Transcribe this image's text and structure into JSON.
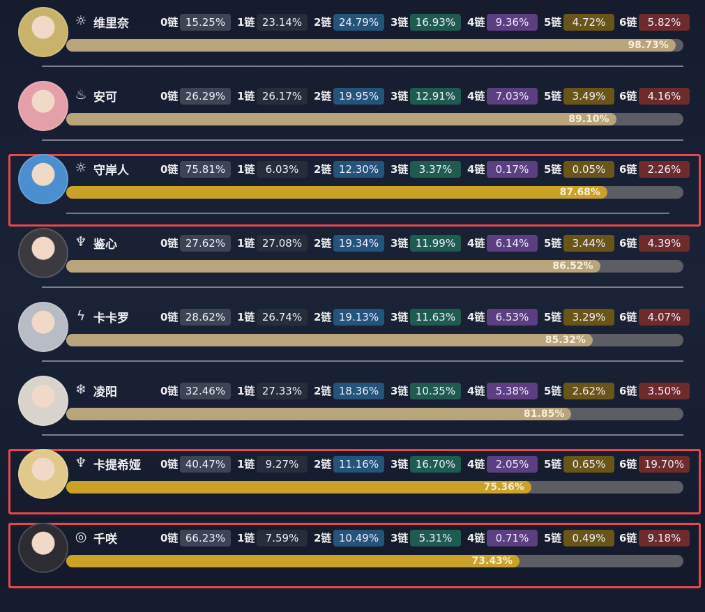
{
  "chain_labels": [
    "0链",
    "1链",
    "2链",
    "3链",
    "4链",
    "5链",
    "6链"
  ],
  "badge_colors": [
    "#3d4453",
    "#262d3b",
    "#24547a",
    "#1f5c4f",
    "#5c3f80",
    "#6a5518",
    "#6e2b2c"
  ],
  "bar_colors": {
    "normal": "#b8a57c",
    "highlighted": "#c9a227",
    "track": "#5c5e64",
    "highlight_border": "#e8484c"
  },
  "characters": [
    {
      "name": "维里奈",
      "element_icon": "spectro-icon",
      "icon": "☼",
      "avatar_color": "#c9b36a",
      "chains": [
        "15.25%",
        "23.14%",
        "24.79%",
        "16.93%",
        "9.36%",
        "4.72%",
        "5.82%"
      ],
      "ownership": "98.73%",
      "ownership_value": 98.73,
      "highlighted": false
    },
    {
      "name": "安可",
      "element_icon": "fusion-icon",
      "icon": "♨",
      "avatar_color": "#e3a0a8",
      "chains": [
        "26.29%",
        "26.17%",
        "19.95%",
        "12.91%",
        "7.03%",
        "3.49%",
        "4.16%"
      ],
      "ownership": "89.10%",
      "ownership_value": 89.1,
      "highlighted": false
    },
    {
      "name": "守岸人",
      "element_icon": "spectro-icon",
      "icon": "☼",
      "avatar_color": "#4b8fd0",
      "chains": [
        "75.81%",
        "6.03%",
        "12.30%",
        "3.37%",
        "0.17%",
        "0.05%",
        "2.26%"
      ],
      "ownership": "87.68%",
      "ownership_value": 87.68,
      "highlighted": true
    },
    {
      "name": "鉴心",
      "element_icon": "aero-icon",
      "icon": "♆",
      "avatar_color": "#3a3a40",
      "chains": [
        "27.62%",
        "27.08%",
        "19.34%",
        "11.99%",
        "6.14%",
        "3.44%",
        "4.39%"
      ],
      "ownership": "86.52%",
      "ownership_value": 86.52,
      "highlighted": false
    },
    {
      "name": "卡卡罗",
      "element_icon": "electro-icon",
      "icon": "ϟ",
      "avatar_color": "#b8bcc4",
      "chains": [
        "28.62%",
        "26.74%",
        "19.13%",
        "11.63%",
        "6.53%",
        "3.29%",
        "4.07%"
      ],
      "ownership": "85.32%",
      "ownership_value": 85.32,
      "highlighted": false
    },
    {
      "name": "凌阳",
      "element_icon": "glacio-icon",
      "icon": "❄",
      "avatar_color": "#d8d4cc",
      "chains": [
        "32.46%",
        "27.33%",
        "18.36%",
        "10.35%",
        "5.38%",
        "2.62%",
        "3.50%"
      ],
      "ownership": "81.85%",
      "ownership_value": 81.85,
      "highlighted": false
    },
    {
      "name": "卡提希娅",
      "element_icon": "aero-icon",
      "icon": "♆",
      "avatar_color": "#e0c98a",
      "chains": [
        "40.47%",
        "9.27%",
        "11.16%",
        "16.70%",
        "2.05%",
        "0.65%",
        "19.70%"
      ],
      "ownership": "75.36%",
      "ownership_value": 75.36,
      "highlighted": true
    },
    {
      "name": "千咲",
      "element_icon": "havoc-icon",
      "icon": "◎",
      "avatar_color": "#2c2c32",
      "chains": [
        "66.23%",
        "7.59%",
        "10.49%",
        "5.31%",
        "0.71%",
        "0.49%",
        "9.18%"
      ],
      "ownership": "73.43%",
      "ownership_value": 73.43,
      "highlighted": true
    }
  ]
}
